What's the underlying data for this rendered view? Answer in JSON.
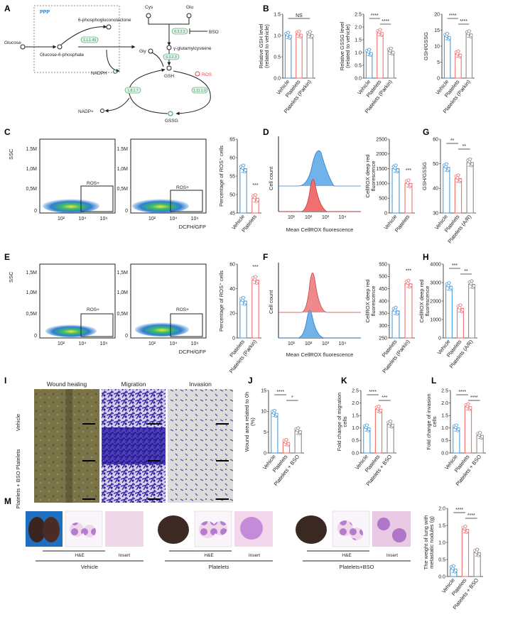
{
  "colors": {
    "blue": "#4a9de0",
    "red": "#f07070",
    "gray": "#8a8a8a",
    "enzyme": "#2f8f5b",
    "ros": "#e04848"
  },
  "panelA": {
    "label": "A",
    "ppp": "PPP",
    "glucose": "Glucose",
    "g6p": "Glucose-6-phosphate",
    "pgl": "6-phosphogluconolactone",
    "nadph": "NADPH",
    "nadp": "NADP+",
    "cys": "Cys",
    "glu": "Glu",
    "gly": "Gly",
    "gglu": "γ-glutamylcysteine",
    "gsh": "GSH",
    "gssg": "GSSG",
    "ros": "ROS",
    "bso": "BSO",
    "e1": "1.1.1.49",
    "e2": "6.3.2.2",
    "e3": "6.3.2.3",
    "e4": "1.8.1.7",
    "e5": "1.11.1.9"
  },
  "panelB": {
    "label": "B"
  },
  "panelC": {
    "label": "C"
  },
  "panelD": {
    "label": "D"
  },
  "panelE": {
    "label": "E"
  },
  "panelF": {
    "label": "F"
  },
  "panelG": {
    "label": "G"
  },
  "panelH": {
    "label": "H"
  },
  "panelI": {
    "label": "I",
    "headers": [
      "Wound healing",
      "Migration",
      "Invasion"
    ],
    "rows": [
      "Vehicle",
      "Platelets",
      "Platelets + BSO"
    ]
  },
  "panelJ": {
    "label": "J"
  },
  "panelK": {
    "label": "K"
  },
  "panelL": {
    "label": "L"
  },
  "panelM": {
    "label": "M",
    "he": "H&E",
    "insert": "Insert",
    "groups": [
      "Vehicle",
      "Platelets",
      "Platelets+BSO"
    ]
  },
  "flow": {
    "ylabel": "SSC",
    "xlabel": "DCFH/GFP",
    "gate": "ROS+",
    "yticks": [
      "1.5M",
      "1,0M",
      "0,5M",
      "0"
    ],
    "yticksE": [
      "1,5M",
      "1,0M",
      "0,5M",
      "0"
    ],
    "xticks": [
      "10²",
      "10⁴",
      "10⁶"
    ]
  },
  "hist": {
    "ylabel": "Cell count",
    "xlabel": "Mean CellROX fluorescence",
    "xticks": [
      "10¹",
      "10²",
      "10³",
      "10⁴"
    ]
  },
  "chart_data": [
    {
      "id": "B1",
      "type": "bar",
      "ylabel": "Relative GSH level (related to vehicle)",
      "categories": [
        "Vehicle",
        "Platelets",
        "Platelets (Parkin)"
      ],
      "values": [
        1.0,
        1.03,
        1.02
      ],
      "ylim": [
        0,
        1.5
      ],
      "yticks": [
        "0.0",
        "0.5",
        "1.0",
        "1.5"
      ],
      "sig": [
        {
          "from": 0,
          "to": 2,
          "text": "NS"
        }
      ]
    },
    {
      "id": "B2",
      "type": "bar",
      "ylabel": "Relative GSSG level (related to vehicle)",
      "categories": [
        "Vehicle",
        "Platelets",
        "Platelets (Parkin)"
      ],
      "values": [
        1.0,
        1.78,
        1.05
      ],
      "ylim": [
        0,
        2.5
      ],
      "yticks": [
        "0.0",
        "0.5",
        "1.0",
        "1.5",
        "2.0",
        "2.5"
      ],
      "sig": [
        {
          "from": 0,
          "to": 1,
          "text": "****"
        },
        {
          "from": 1,
          "to": 2,
          "text": "****"
        }
      ]
    },
    {
      "id": "B3",
      "type": "bar",
      "ylabel": "GSH/GSSG",
      "categories": [
        "Vehicle",
        "Platelets",
        "Platelets (Parkin)"
      ],
      "values": [
        13.0,
        7.5,
        13.8
      ],
      "ylim": [
        0,
        20
      ],
      "yticks": [
        "0",
        "5",
        "10",
        "15",
        "20"
      ],
      "sig": [
        {
          "from": 0,
          "to": 1,
          "text": "****"
        },
        {
          "from": 1,
          "to": 2,
          "text": "****"
        }
      ]
    },
    {
      "id": "C",
      "type": "bar",
      "ylabel": "Percentage of ROS⁺ cells",
      "categories": [
        "Vehicle",
        "Platelets"
      ],
      "values": [
        57.0,
        49.0
      ],
      "ylim": [
        45,
        65
      ],
      "yticks": [
        "45",
        "50",
        "55",
        "60",
        "65"
      ],
      "sig": [
        {
          "on": 1,
          "text": "***"
        }
      ]
    },
    {
      "id": "D",
      "type": "bar",
      "ylabel": "CellROX deep red fluorescence",
      "categories": [
        "Vehicle",
        "Platelets"
      ],
      "values": [
        1500,
        1000
      ],
      "ylim": [
        0,
        2500
      ],
      "yticks": [
        "0",
        "500",
        "1000",
        "1500",
        "2000",
        "2500"
      ],
      "sig": [
        {
          "on": 1,
          "text": "***"
        }
      ]
    },
    {
      "id": "G",
      "type": "bar",
      "ylabel": "GSH/GSSG",
      "categories": [
        "Vehicle",
        "Platelets",
        "Platelets (A/R)"
      ],
      "values": [
        48.5,
        44.0,
        50.5
      ],
      "ylim": [
        30,
        60
      ],
      "yticks": [
        "30",
        "40",
        "50",
        "60"
      ],
      "sig": [
        {
          "from": 0,
          "to": 1,
          "text": "**"
        },
        {
          "from": 1,
          "to": 2,
          "text": "**"
        }
      ]
    },
    {
      "id": "E",
      "type": "bar",
      "ylabel": "Percentage of ROS⁺ cells",
      "categories": [
        "Platelets",
        "Platelets (Parkin)"
      ],
      "values": [
        30.0,
        47.0
      ],
      "ylim": [
        0,
        60
      ],
      "yticks": [
        "0",
        "20",
        "40",
        "60"
      ],
      "sig": [
        {
          "on": 1,
          "text": "***"
        }
      ]
    },
    {
      "id": "F",
      "type": "bar",
      "ylabel": "CellROX deep red fluorescence",
      "categories": [
        "Platelets",
        "Platelets (Parkin)"
      ],
      "values": [
        360,
        470
      ],
      "ylim": [
        250,
        550
      ],
      "yticks": [
        "250",
        "300",
        "350",
        "400",
        "450",
        "500",
        "550"
      ],
      "sig": [
        {
          "on": 1,
          "text": "***"
        }
      ]
    },
    {
      "id": "H",
      "type": "bar",
      "ylabel": "CellROX deep red fluorescence",
      "categories": [
        "Vehicle",
        "Platelets",
        "Platelets (A/R)"
      ],
      "values": [
        2800,
        1600,
        2900
      ],
      "ylim": [
        0,
        4000
      ],
      "yticks": [
        "0",
        "1000",
        "2000",
        "3000",
        "4000"
      ],
      "sig": [
        {
          "from": 0,
          "to": 1,
          "text": "***"
        },
        {
          "from": 1,
          "to": 2,
          "text": "**"
        }
      ]
    },
    {
      "id": "J",
      "type": "bar",
      "ylabel": "Wound area related to 0h (%)",
      "categories": [
        "Vehicle",
        "Platelets",
        "Platelets + BSO"
      ],
      "values": [
        9.5,
        2.5,
        5.3
      ],
      "ylim": [
        0,
        15
      ],
      "yticks": [
        "0",
        "5",
        "10",
        "15"
      ],
      "sig": [
        {
          "from": 0,
          "to": 1,
          "text": "****"
        },
        {
          "from": 1,
          "to": 2,
          "text": "*"
        }
      ]
    },
    {
      "id": "K",
      "type": "bar",
      "ylabel": "Fold change of migration cells",
      "categories": [
        "Vehicle",
        "Platelets",
        "Platelets + BSO"
      ],
      "values": [
        1.0,
        1.75,
        1.15
      ],
      "ylim": [
        0,
        2.5
      ],
      "yticks": [
        "0.0",
        "0.5",
        "1.0",
        "1.5",
        "2.0",
        "2.5"
      ],
      "sig": [
        {
          "from": 0,
          "to": 1,
          "text": "****"
        },
        {
          "from": 1,
          "to": 2,
          "text": "***"
        }
      ]
    },
    {
      "id": "L",
      "type": "bar",
      "ylabel": "Fold change of invasion cells",
      "categories": [
        "Vehicle",
        "Platelets",
        "Platelets + BSO"
      ],
      "values": [
        1.0,
        1.85,
        0.7
      ],
      "ylim": [
        0,
        2.5
      ],
      "yticks": [
        "0.0",
        "0.5",
        "1.0",
        "1.5",
        "2.0",
        "2.5"
      ],
      "sig": [
        {
          "from": 0,
          "to": 1,
          "text": "****"
        },
        {
          "from": 1,
          "to": 2,
          "text": "****"
        }
      ]
    },
    {
      "id": "M",
      "type": "bar",
      "ylabel": "The weight of lung with metastatic nodules (g)",
      "categories": [
        "Vehicle",
        "Platelets",
        "Platelets + BSO"
      ],
      "values": [
        0.22,
        1.38,
        0.7
      ],
      "ylim": [
        0,
        2.0
      ],
      "yticks": [
        "0.0",
        "0.5",
        "1.0",
        "1.5",
        "2.0"
      ],
      "sig": [
        {
          "from": 0,
          "to": 1,
          "text": "****"
        },
        {
          "from": 1,
          "to": 2,
          "text": "****"
        }
      ]
    }
  ]
}
